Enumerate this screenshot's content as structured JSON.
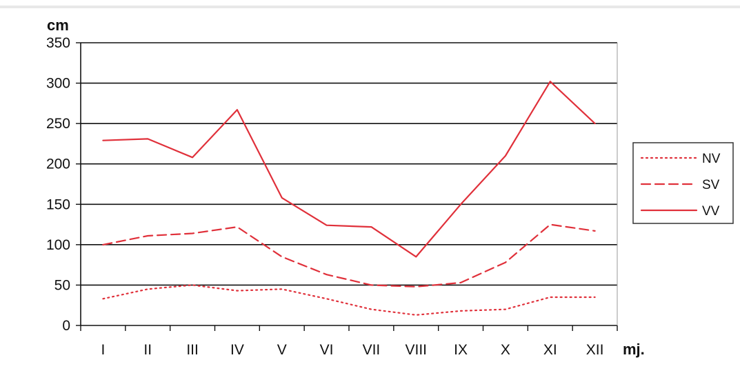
{
  "chart_data": {
    "type": "line",
    "title": "",
    "ylabel": "cm",
    "xlabel": "mj.",
    "ylim": [
      0,
      350
    ],
    "yticks": [
      0,
      50,
      100,
      150,
      200,
      250,
      300,
      350
    ],
    "grid": "horizontal",
    "legend_position": "right",
    "categories": [
      "I",
      "II",
      "III",
      "IV",
      "V",
      "VI",
      "VII",
      "VIII",
      "IX",
      "X",
      "XI",
      "XII"
    ],
    "series": [
      {
        "name": "NV",
        "style": "dotted",
        "color": "#e0303a",
        "values": [
          33,
          45,
          50,
          43,
          45,
          33,
          20,
          13,
          18,
          20,
          35,
          35
        ]
      },
      {
        "name": "SV",
        "style": "dashed",
        "color": "#e0303a",
        "values": [
          100,
          111,
          114,
          122,
          85,
          63,
          50,
          48,
          53,
          78,
          125,
          117
        ]
      },
      {
        "name": "VV",
        "style": "solid",
        "color": "#e0303a",
        "values": [
          229,
          231,
          208,
          267,
          158,
          124,
          122,
          85,
          150,
          210,
          302,
          250
        ]
      }
    ]
  }
}
